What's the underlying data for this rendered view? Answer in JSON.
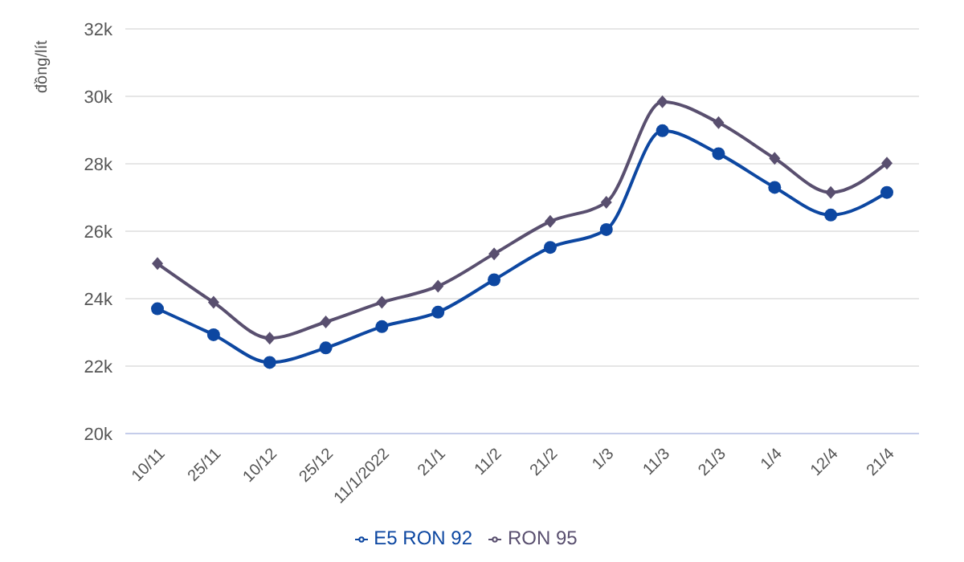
{
  "chart_data": {
    "type": "line",
    "ylabel": "đồng/lít",
    "categories": [
      "10/11",
      "25/11",
      "10/12",
      "25/12",
      "11/1/2022",
      "21/1",
      "11/2",
      "21/2",
      "1/3",
      "11/3",
      "21/3",
      "1/4",
      "12/4",
      "21/4"
    ],
    "series": [
      {
        "name": "E5 RON 92",
        "color": "#0d47a1",
        "marker": "circle",
        "values": [
          23700,
          22930,
          22110,
          22540,
          23170,
          23600,
          24560,
          25520,
          26050,
          28980,
          28300,
          27300,
          26480,
          27150
        ]
      },
      {
        "name": "RON 95",
        "color": "#594f6f",
        "marker": "diamond",
        "values": [
          25040,
          23890,
          22830,
          23310,
          23890,
          24370,
          25330,
          26290,
          26860,
          29840,
          29220,
          28160,
          27150,
          28020
        ]
      }
    ],
    "ylim": [
      20000,
      32000
    ],
    "yticks": [
      {
        "value": 20000,
        "label": "20k"
      },
      {
        "value": 22000,
        "label": "22k"
      },
      {
        "value": 24000,
        "label": "24k"
      },
      {
        "value": 26000,
        "label": "26k"
      },
      {
        "value": 28000,
        "label": "28k"
      },
      {
        "value": 30000,
        "label": "30k"
      },
      {
        "value": 32000,
        "label": "32k"
      }
    ],
    "grid": "y",
    "legend": "bottom",
    "line_style": "solid"
  }
}
